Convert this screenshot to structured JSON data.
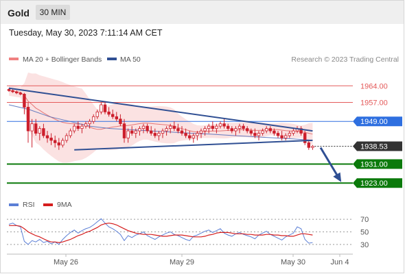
{
  "header": {
    "symbol": "Gold",
    "timeframe": "30 MIN"
  },
  "timestamp": "Tuesday, May 30, 2023 7:11:14 AM CET",
  "legend": {
    "ma_bb": "MA 20 + Bollinger Bands",
    "ma50": "MA 50"
  },
  "credit": "Research © 2023 Trading Central",
  "colors": {
    "candle": "#cc1f2c",
    "bands": "#f7caca",
    "ma20": "#e05a5a",
    "ma50": "#4a68b8",
    "trendline": "#2f4f93",
    "resistance": "#e45a5a",
    "pivot": "#2e6fe0",
    "support": "#0b7a0b",
    "rsi": "#5b7fd6",
    "rsi_ma": "#d51d1d"
  },
  "chart_data": [
    {
      "type": "candlestick",
      "x_ticks": [
        "May 26",
        "May 29",
        "May 30",
        "Jun 4"
      ],
      "ylim": [
        1917,
        1969
      ],
      "bollinger": {
        "period": 20,
        "label": "MA 20 + Bollinger Bands"
      },
      "ma50": [
        1956,
        1954,
        1951,
        1949,
        1947,
        1946,
        1945.5,
        1945,
        1944.5,
        1944,
        1943.6,
        1943.1,
        1942.6,
        1942.1,
        1941.6,
        1941.1
      ],
      "candles": [
        [
          1962.5,
          1963,
          1961.5,
          1962
        ],
        [
          1962,
          1962.5,
          1961,
          1961.5
        ],
        [
          1961.5,
          1962,
          1960.5,
          1961
        ],
        [
          1961,
          1961.5,
          1960,
          1960.5
        ],
        [
          1960.5,
          1961,
          1952,
          1955
        ],
        [
          1955,
          1957,
          1940,
          1945
        ],
        [
          1945,
          1950,
          1938,
          1948
        ],
        [
          1948,
          1950,
          1943,
          1944
        ],
        [
          1944,
          1947,
          1941,
          1946
        ],
        [
          1946,
          1948,
          1942,
          1943
        ],
        [
          1943,
          1945,
          1940,
          1942
        ],
        [
          1942,
          1944,
          1939,
          1941
        ],
        [
          1941,
          1943,
          1938,
          1940
        ],
        [
          1940,
          1942,
          1937,
          1939
        ],
        [
          1939,
          1942,
          1938,
          1941
        ],
        [
          1941,
          1944,
          1940,
          1943
        ],
        [
          1943,
          1946,
          1942,
          1945
        ],
        [
          1945,
          1948,
          1944,
          1947
        ],
        [
          1947,
          1949,
          1945,
          1946
        ],
        [
          1946,
          1948,
          1944,
          1947
        ],
        [
          1947,
          1949,
          1946,
          1948
        ],
        [
          1948,
          1950,
          1946,
          1949
        ],
        [
          1949,
          1952,
          1948,
          1951
        ],
        [
          1951,
          1954,
          1950,
          1953
        ],
        [
          1953,
          1957,
          1952,
          1956
        ],
        [
          1956,
          1957,
          1952,
          1953
        ],
        [
          1953,
          1955,
          1951,
          1952
        ],
        [
          1952,
          1954,
          1950,
          1951
        ],
        [
          1951,
          1953,
          1949,
          1950
        ],
        [
          1950,
          1952,
          1947,
          1948
        ],
        [
          1948,
          1950,
          1940,
          1942
        ],
        [
          1942,
          1946,
          1940,
          1945
        ],
        [
          1945,
          1947,
          1943,
          1944
        ],
        [
          1944,
          1946,
          1942,
          1945
        ],
        [
          1945,
          1947,
          1943,
          1946
        ],
        [
          1946,
          1948,
          1944,
          1947
        ],
        [
          1947,
          1948,
          1944,
          1945
        ],
        [
          1945,
          1947,
          1943,
          1944
        ],
        [
          1944,
          1946,
          1942,
          1943
        ],
        [
          1943,
          1945,
          1941,
          1944
        ],
        [
          1944,
          1946,
          1942,
          1945
        ],
        [
          1945,
          1947,
          1943,
          1946
        ],
        [
          1946,
          1948,
          1944,
          1947
        ],
        [
          1947,
          1949,
          1945,
          1946
        ],
        [
          1946,
          1948,
          1944,
          1945
        ],
        [
          1945,
          1947,
          1943,
          1944
        ],
        [
          1944,
          1946,
          1942,
          1943
        ],
        [
          1943,
          1945,
          1941,
          1942
        ],
        [
          1942,
          1944,
          1940,
          1943
        ],
        [
          1943,
          1945,
          1941,
          1944
        ],
        [
          1944,
          1946,
          1942,
          1945
        ],
        [
          1945,
          1947,
          1943,
          1946
        ],
        [
          1946,
          1948,
          1944,
          1947
        ],
        [
          1947,
          1949,
          1945,
          1946
        ],
        [
          1946,
          1948,
          1944,
          1947
        ],
        [
          1947,
          1949,
          1946,
          1948
        ],
        [
          1948,
          1950,
          1946,
          1947
        ],
        [
          1947,
          1948,
          1945,
          1946
        ],
        [
          1946,
          1947,
          1944,
          1945
        ],
        [
          1945,
          1947,
          1943,
          1946
        ],
        [
          1946,
          1948,
          1944,
          1947
        ],
        [
          1947,
          1948,
          1945,
          1946
        ],
        [
          1946,
          1947,
          1944,
          1945
        ],
        [
          1945,
          1946,
          1943,
          1944
        ],
        [
          1944,
          1946,
          1942,
          1943
        ],
        [
          1943,
          1945,
          1941,
          1944
        ],
        [
          1944,
          1946,
          1943,
          1945
        ],
        [
          1945,
          1947,
          1944,
          1946
        ],
        [
          1946,
          1947,
          1944,
          1945
        ],
        [
          1945,
          1946,
          1943,
          1944
        ],
        [
          1944,
          1945,
          1942,
          1943
        ],
        [
          1943,
          1945,
          1941,
          1942
        ],
        [
          1942,
          1944,
          1941,
          1943
        ],
        [
          1943,
          1945,
          1942,
          1944
        ],
        [
          1944,
          1946,
          1943,
          1945
        ],
        [
          1945,
          1947,
          1944,
          1946
        ],
        [
          1946,
          1947,
          1943,
          1944
        ],
        [
          1944,
          1945,
          1939,
          1940
        ],
        [
          1940,
          1941,
          1937,
          1938
        ],
        [
          1938,
          1939,
          1937,
          1938.5
        ]
      ],
      "levels": [
        {
          "value": 1964.0,
          "label": "1964.00",
          "kind": "resistance"
        },
        {
          "value": 1957.0,
          "label": "1957.00",
          "kind": "resistance"
        },
        {
          "value": 1949.0,
          "label": "1949.00",
          "kind": "pivot"
        },
        {
          "value": 1938.53,
          "label": "1938.53",
          "kind": "last"
        },
        {
          "value": 1931.0,
          "label": "1931.00",
          "kind": "support"
        },
        {
          "value": 1923.0,
          "label": "1923.00",
          "kind": "support"
        }
      ],
      "trendlines": [
        {
          "from": [
            0,
            1963
          ],
          "to": [
            79,
            1945
          ]
        },
        {
          "from": [
            17,
            1937
          ],
          "to": [
            79,
            1941
          ]
        }
      ],
      "projection": {
        "from": [
          80,
          1938.53
        ],
        "to": [
          86,
          1923
        ]
      }
    },
    {
      "type": "line",
      "legend": [
        "RSI",
        "9MA"
      ],
      "ylim": [
        20,
        80
      ],
      "y_ticks": [
        70,
        50,
        30
      ],
      "rsi": [
        62,
        64,
        60,
        58,
        35,
        30,
        36,
        34,
        38,
        33,
        35,
        31,
        34,
        30,
        38,
        44,
        49,
        53,
        48,
        52,
        55,
        57,
        61,
        66,
        71,
        64,
        58,
        55,
        51,
        46,
        36,
        44,
        41,
        45,
        47,
        50,
        44,
        41,
        38,
        42,
        45,
        48,
        50,
        46,
        44,
        41,
        38,
        36,
        43,
        45,
        48,
        51,
        53,
        49,
        52,
        55,
        48,
        45,
        43,
        47,
        49,
        46,
        44,
        42,
        39,
        45,
        48,
        51,
        46,
        43,
        40,
        37,
        42,
        45,
        48,
        58,
        55,
        38,
        32,
        33
      ],
      "rsi_ma": [
        60,
        60,
        60,
        59,
        55,
        50,
        47,
        44,
        42,
        39,
        36,
        34,
        34,
        33,
        34,
        36,
        38,
        41,
        44,
        46,
        49,
        51,
        54,
        57,
        61,
        63,
        64,
        63,
        61,
        58,
        55,
        52,
        50,
        48,
        47,
        46,
        46,
        46,
        45,
        44,
        43,
        43,
        44,
        45,
        45,
        45,
        44,
        43,
        42,
        42,
        42,
        43,
        45,
        46,
        48,
        49,
        49,
        49,
        48,
        47,
        47,
        47,
        46,
        46,
        45,
        45,
        45,
        46,
        46,
        45,
        45,
        44,
        44,
        43,
        43,
        45,
        47,
        47,
        46,
        45
      ]
    }
  ]
}
